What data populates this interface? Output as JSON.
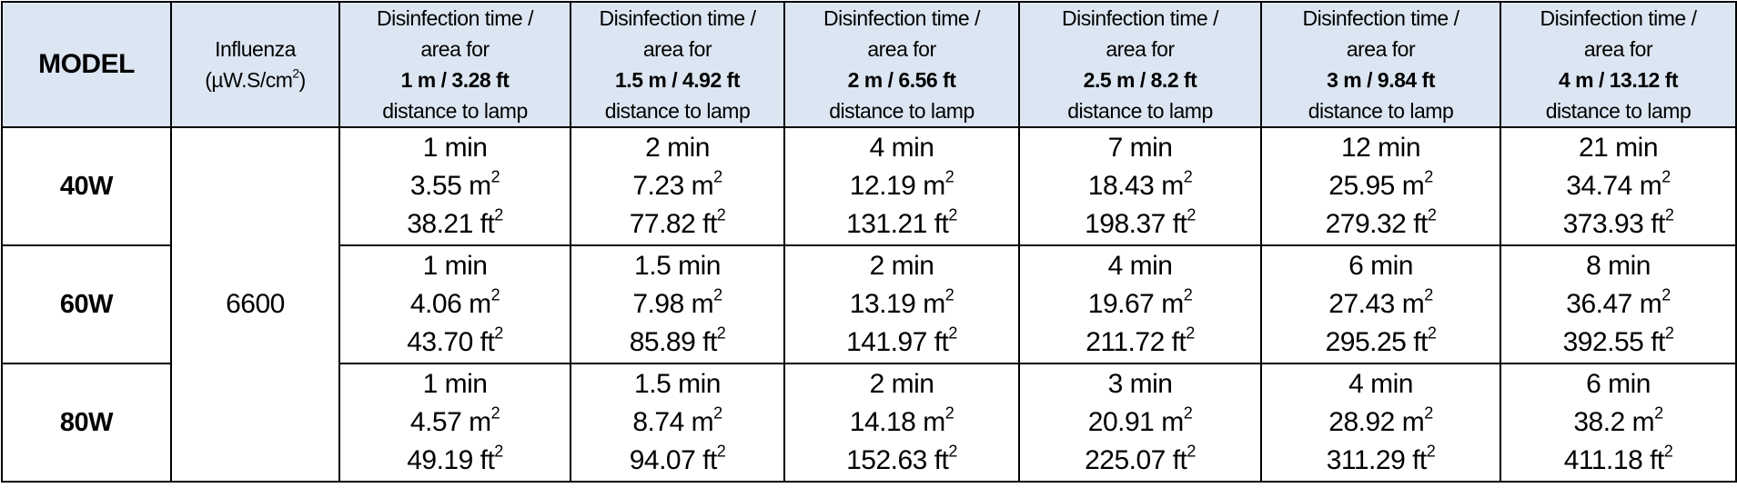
{
  "header": {
    "model": "MODEL",
    "influenza": {
      "name": "Influenza",
      "unit": "(µW.S/cm",
      "unit_close": ")"
    },
    "distance_prefix": "Disinfection time /",
    "distance_mid": "area for",
    "distance_suffix": "distance to lamp",
    "distances": [
      "1 m / 3.28 ft",
      "1.5 m / 4.92 ft",
      "2 m / 6.56 ft",
      "2.5 m / 8.2 ft",
      "3 m / 9.84 ft",
      "4 m / 13.12 ft"
    ]
  },
  "square": "2",
  "influenza_value": "6600",
  "rows": [
    {
      "model": "40W",
      "cells": [
        [
          "1 min",
          "3.55 m",
          "38.21 ft"
        ],
        [
          "2 min",
          "7.23 m",
          "77.82 ft"
        ],
        [
          "4 min",
          "12.19 m",
          "131.21 ft"
        ],
        [
          "7 min",
          "18.43 m",
          "198.37 ft"
        ],
        [
          "12 min",
          "25.95 m",
          "279.32 ft"
        ],
        [
          "21 min",
          "34.74 m",
          "373.93 ft"
        ]
      ]
    },
    {
      "model": "60W",
      "cells": [
        [
          "1 min",
          "4.06 m",
          "43.70 ft"
        ],
        [
          "1.5 min",
          "7.98 m",
          "85.89 ft"
        ],
        [
          "2 min",
          "13.19 m",
          "141.97 ft"
        ],
        [
          "4 min",
          "19.67 m",
          "211.72 ft"
        ],
        [
          "6 min",
          "27.43 m",
          "295.25 ft"
        ],
        [
          "8 min",
          "36.47 m",
          "392.55 ft"
        ]
      ]
    },
    {
      "model": "80W",
      "cells": [
        [
          "1 min",
          "4.57 m",
          "49.19 ft"
        ],
        [
          "1.5 min",
          "8.74 m",
          "94.07 ft"
        ],
        [
          "2 min",
          "14.18 m",
          "152.63 ft"
        ],
        [
          "3 min",
          "20.91 m",
          "225.07 ft"
        ],
        [
          "4 min",
          "28.92 m",
          "311.29 ft"
        ],
        [
          "6 min",
          "38.2 m",
          "411.18 ft"
        ]
      ]
    }
  ]
}
